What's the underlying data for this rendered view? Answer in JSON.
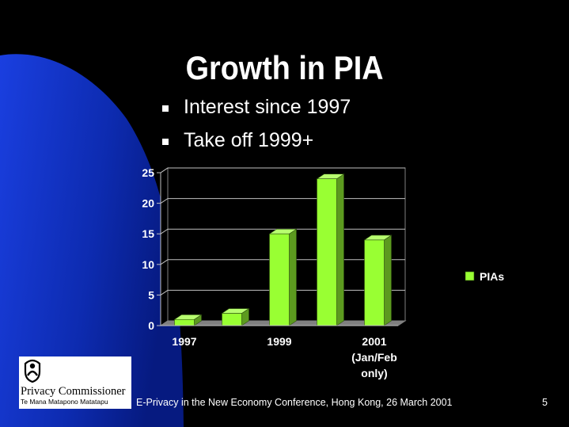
{
  "slide": {
    "title": "Growth in PIA",
    "bullets": [
      "Interest since 1997",
      "Take off 1999+"
    ],
    "footer": "E-Privacy in the New Economy Conference, Hong Kong, 26 March 2001",
    "slide_number": "5"
  },
  "logo": {
    "name": "Privacy Commissioner",
    "subtitle": "Te Mana Matapono Matatapu",
    "icon": "privacy-commissioner-emblem-icon"
  },
  "colors": {
    "background": "#000000",
    "swoosh": "#1133cc",
    "bar_front": "#99ff33",
    "bar_side": "#5c9a1f",
    "bar_top": "#b8ff70",
    "text": "#ffffff"
  },
  "chart_data": {
    "type": "bar",
    "categories": [
      "1997",
      "",
      "1999",
      "",
      "2001"
    ],
    "tick_labels": [
      {
        "index": 0,
        "lines": [
          "1997"
        ]
      },
      {
        "index": 2,
        "lines": [
          "1999"
        ]
      },
      {
        "index": 4,
        "lines": [
          "2001",
          "(Jan/Feb",
          "only)"
        ]
      }
    ],
    "series": [
      {
        "name": "PIAs",
        "values": [
          1,
          2,
          15,
          24,
          14
        ]
      }
    ],
    "ylim": [
      0,
      25
    ],
    "yticks": [
      0,
      5,
      10,
      15,
      20,
      25
    ],
    "grid": true,
    "legend_position": "right",
    "style": "3d-column"
  }
}
